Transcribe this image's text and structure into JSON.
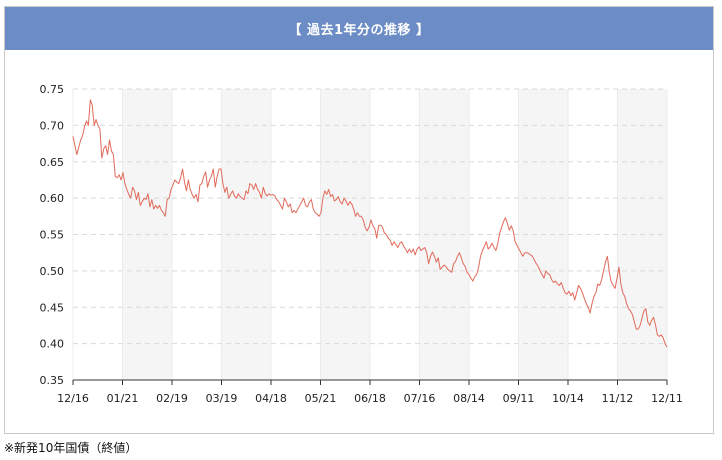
{
  "header": {
    "title": "【 過去1年分の推移 】"
  },
  "footnote": "※新発10年国債（終値）",
  "colors": {
    "header": "#6b8cc4",
    "line": "#e06a5a",
    "band": "#f5f5f5",
    "grid": "#d9d9d9"
  },
  "chart_data": {
    "type": "line",
    "title": "",
    "xlabel": "",
    "ylabel": "",
    "ylim": [
      0.35,
      0.75
    ],
    "grid": true,
    "yticks": [
      "0.35",
      "0.40",
      "0.45",
      "0.50",
      "0.55",
      "0.60",
      "0.65",
      "0.70",
      "0.75"
    ],
    "xticks": [
      "12/16",
      "01/21",
      "02/19",
      "03/19",
      "04/18",
      "05/21",
      "06/18",
      "07/16",
      "08/14",
      "09/11",
      "10/14",
      "11/12",
      "12/11"
    ],
    "series": [
      {
        "values": [
          0.685,
          0.672,
          0.66,
          0.67,
          0.68,
          0.686,
          0.698,
          0.706,
          0.7,
          0.735,
          0.728,
          0.7,
          0.708,
          0.7,
          0.695,
          0.655,
          0.668,
          0.672,
          0.66,
          0.68,
          0.665,
          0.66,
          0.63,
          0.628,
          0.632,
          0.625,
          0.635,
          0.62,
          0.612,
          0.605,
          0.6,
          0.615,
          0.61,
          0.598,
          0.608,
          0.59,
          0.595,
          0.6,
          0.598,
          0.606,
          0.588,
          0.598,
          0.585,
          0.59,
          0.586,
          0.59,
          0.583,
          0.58,
          0.575,
          0.598,
          0.6,
          0.612,
          0.618,
          0.625,
          0.622,
          0.62,
          0.628,
          0.64,
          0.622,
          0.61,
          0.625,
          0.612,
          0.605,
          0.6,
          0.605,
          0.595,
          0.618,
          0.62,
          0.63,
          0.636,
          0.615,
          0.625,
          0.63,
          0.64,
          0.615,
          0.63,
          0.64,
          0.64,
          0.62,
          0.608,
          0.615,
          0.6,
          0.605,
          0.61,
          0.603,
          0.6,
          0.606,
          0.602,
          0.6,
          0.598,
          0.61,
          0.606,
          0.62,
          0.618,
          0.612,
          0.62,
          0.612,
          0.608,
          0.6,
          0.615,
          0.606,
          0.603,
          0.606,
          0.604,
          0.605,
          0.603,
          0.598,
          0.595,
          0.59,
          0.585,
          0.6,
          0.595,
          0.588,
          0.592,
          0.58,
          0.583,
          0.58,
          0.585,
          0.59,
          0.595,
          0.6,
          0.59,
          0.588,
          0.595,
          0.598,
          0.585,
          0.58,
          0.578,
          0.575,
          0.58,
          0.6,
          0.61,
          0.605,
          0.612,
          0.602,
          0.605,
          0.596,
          0.598,
          0.602,
          0.595,
          0.592,
          0.6,
          0.596,
          0.59,
          0.595,
          0.592,
          0.585,
          0.575,
          0.58,
          0.575,
          0.575,
          0.57,
          0.56,
          0.555,
          0.56,
          0.57,
          0.562,
          0.558,
          0.545,
          0.562,
          0.563,
          0.56,
          0.552,
          0.55,
          0.545,
          0.542,
          0.535,
          0.54,
          0.536,
          0.532,
          0.538,
          0.54,
          0.534,
          0.53,
          0.525,
          0.53,
          0.525,
          0.53,
          0.522,
          0.53,
          0.533,
          0.528,
          0.53,
          0.532,
          0.525,
          0.51,
          0.52,
          0.526,
          0.52,
          0.512,
          0.518,
          0.502,
          0.505,
          0.508,
          0.506,
          0.502,
          0.5,
          0.498,
          0.51,
          0.513,
          0.52,
          0.525,
          0.518,
          0.51,
          0.506,
          0.498,
          0.495,
          0.49,
          0.486,
          0.492,
          0.495,
          0.505,
          0.52,
          0.528,
          0.534,
          0.54,
          0.53,
          0.533,
          0.538,
          0.532,
          0.528,
          0.538,
          0.552,
          0.56,
          0.568,
          0.573,
          0.565,
          0.556,
          0.562,
          0.555,
          0.54,
          0.535,
          0.53,
          0.525,
          0.52,
          0.525,
          0.525,
          0.524,
          0.522,
          0.52,
          0.515,
          0.51,
          0.506,
          0.5,
          0.495,
          0.49,
          0.5,
          0.496,
          0.495,
          0.488,
          0.484,
          0.486,
          0.482,
          0.48,
          0.484,
          0.476,
          0.47,
          0.468,
          0.472,
          0.466,
          0.47,
          0.46,
          0.47,
          0.48,
          0.476,
          0.47,
          0.462,
          0.455,
          0.45,
          0.442,
          0.455,
          0.465,
          0.47,
          0.482,
          0.48,
          0.488,
          0.5,
          0.512,
          0.52,
          0.498,
          0.485,
          0.48,
          0.476,
          0.49,
          0.505,
          0.482,
          0.47,
          0.465,
          0.455,
          0.448,
          0.445,
          0.44,
          0.43,
          0.42,
          0.42,
          0.425,
          0.435,
          0.445,
          0.448,
          0.43,
          0.425,
          0.432,
          0.436,
          0.426,
          0.412,
          0.41,
          0.412,
          0.408,
          0.4,
          0.395
        ]
      }
    ]
  }
}
